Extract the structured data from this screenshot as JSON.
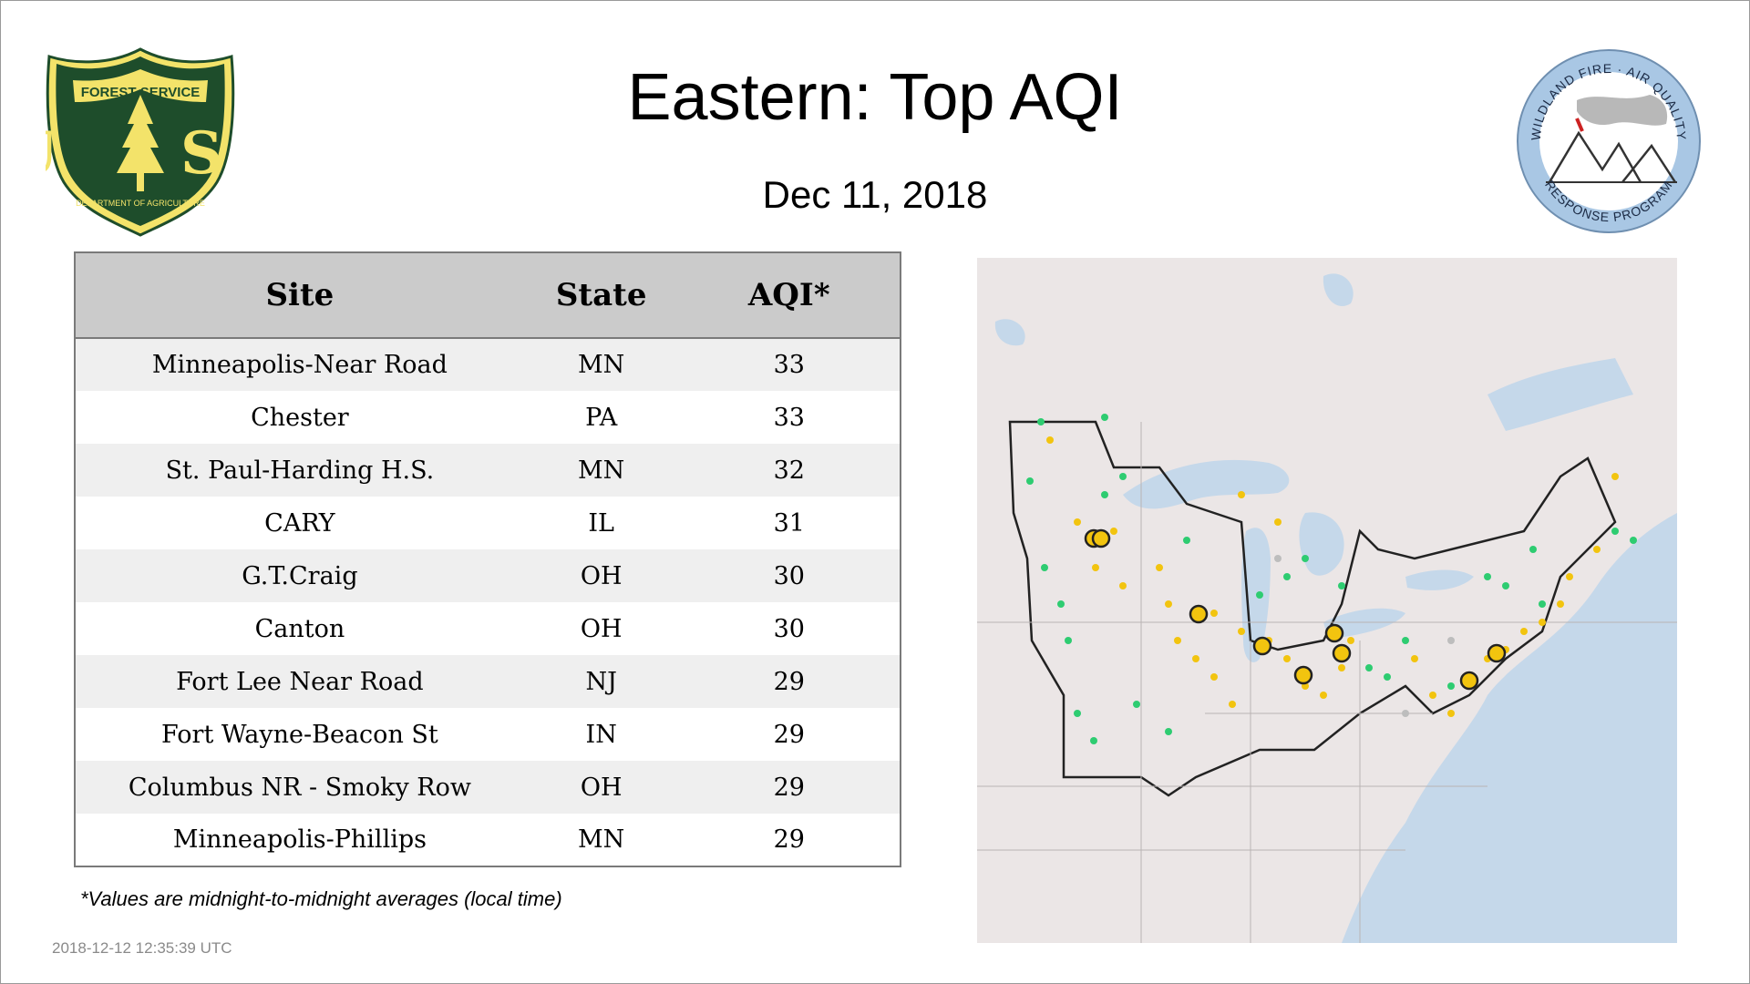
{
  "header": {
    "title": "Eastern: Top AQI",
    "date": "Dec 11, 2018"
  },
  "logos": {
    "usfs": {
      "top_text": "FOREST SERVICE",
      "letters": "U S",
      "bottom_text": "DEPARTMENT OF AGRICULTURE"
    },
    "wfaq": {
      "top_text": "WILDLAND FIRE · AIR QUALITY",
      "bottom_text": "RESPONSE PROGRAM"
    }
  },
  "table": {
    "headers": {
      "site": "Site",
      "state": "State",
      "aqi": "AQI*"
    },
    "rows": [
      {
        "site": "Minneapolis-Near Road",
        "state": "MN",
        "aqi": "33"
      },
      {
        "site": "Chester",
        "state": "PA",
        "aqi": "33"
      },
      {
        "site": "St. Paul-Harding H.S.",
        "state": "MN",
        "aqi": "32"
      },
      {
        "site": "CARY",
        "state": "IL",
        "aqi": "31"
      },
      {
        "site": "G.T.Craig",
        "state": "OH",
        "aqi": "30"
      },
      {
        "site": "Canton",
        "state": "OH",
        "aqi": "30"
      },
      {
        "site": "Fort Lee Near Road",
        "state": "NJ",
        "aqi": "29"
      },
      {
        "site": "Fort Wayne-Beacon St",
        "state": "IN",
        "aqi": "29"
      },
      {
        "site": "Columbus NR - Smoky Row",
        "state": "OH",
        "aqi": "29"
      },
      {
        "site": "Minneapolis-Phillips",
        "state": "MN",
        "aqi": "29"
      }
    ]
  },
  "footnote": "*Values are midnight-to-midnight averages (local time)",
  "timestamp": "2018-12-12 12:35:39 UTC",
  "colors": {
    "aqi_good": "#2ecc71",
    "aqi_moderate": "#f2c40f",
    "no_data": "#bdbdbd",
    "water": "#c5d8ea",
    "land": "#ebe6e6",
    "usfs_green": "#1e4d2b",
    "usfs_gold": "#f3e36a",
    "wfaq_blue": "#a9c7e4"
  }
}
